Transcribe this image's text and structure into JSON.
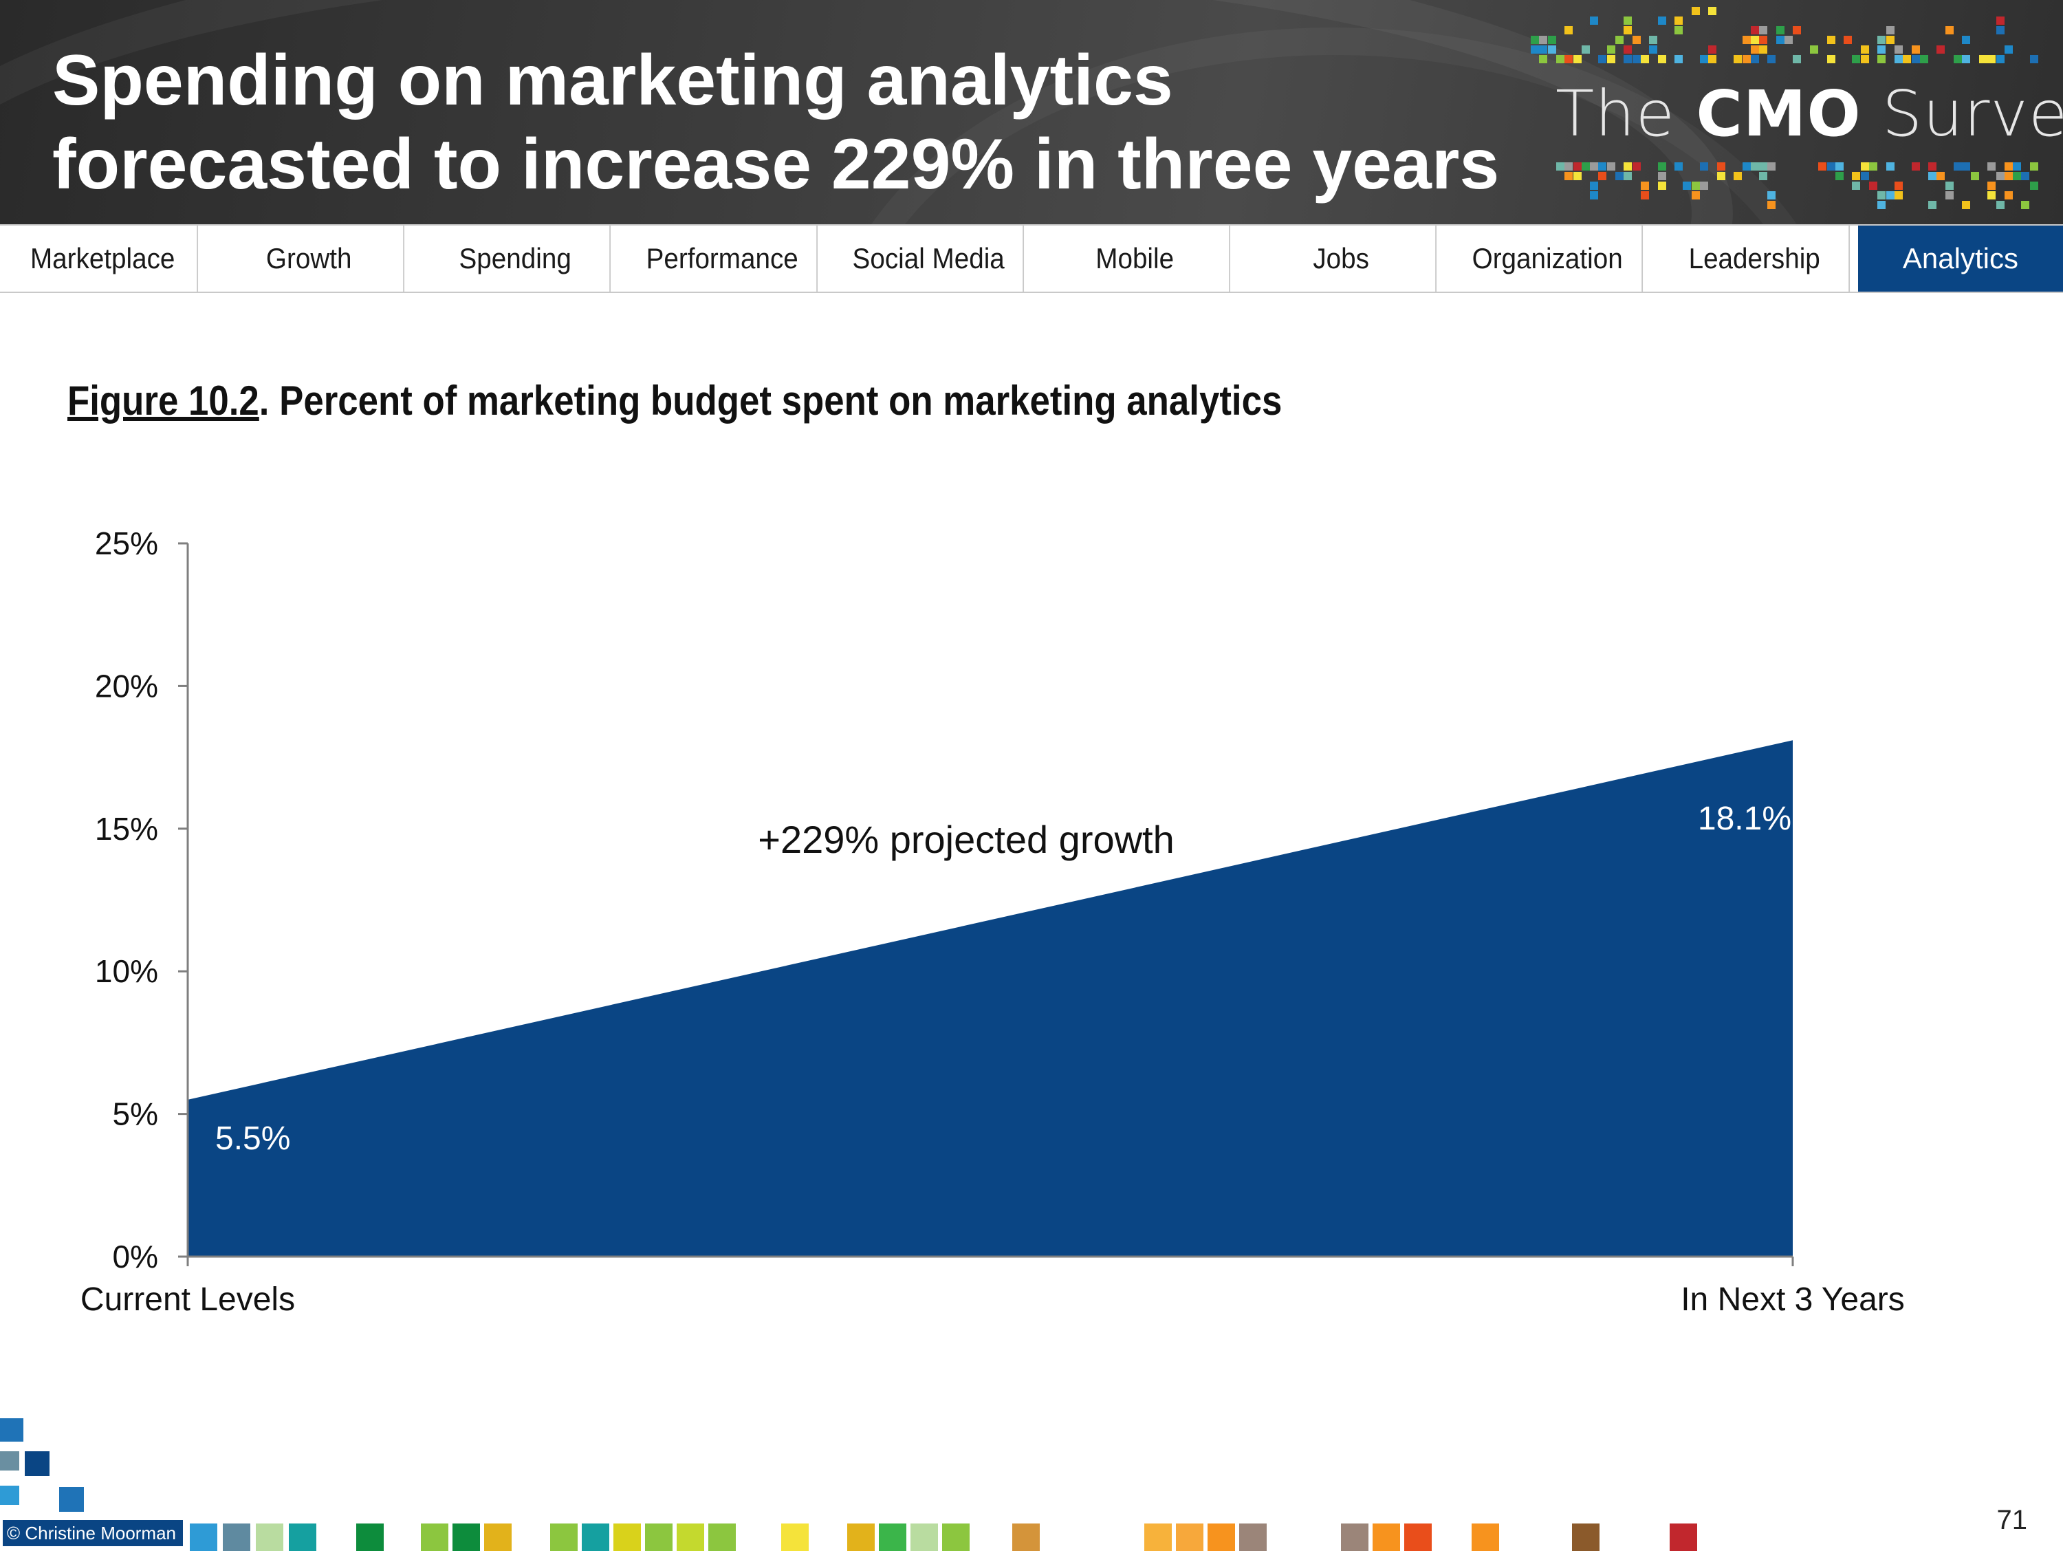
{
  "header": {
    "title": "Spending on marketing analytics forecasted to increase 229% in three years",
    "logo_prefix": "The ",
    "logo_bold": "CMO",
    "logo_suffix": " Survey"
  },
  "nav": {
    "tabs": [
      "Marketplace",
      "Growth",
      "Spending",
      "Performance",
      "Social Media",
      "Mobile",
      "Jobs",
      "Organization",
      "Leadership",
      "Analytics"
    ],
    "active": "Analytics"
  },
  "figure": {
    "number": "Figure 10.2",
    "caption": ". Percent of marketing budget spent on marketing analytics"
  },
  "chart_data": {
    "type": "area",
    "categories": [
      "Current Levels",
      "In Next 3 Years"
    ],
    "values": [
      5.5,
      18.1
    ],
    "data_labels": [
      "5.5%",
      "18.1%"
    ],
    "annotation": "+229% projected growth",
    "ylim": [
      0,
      25
    ],
    "yticks": [
      0,
      5,
      10,
      15,
      20,
      25
    ],
    "ytick_labels": [
      "0%",
      "5%",
      "10%",
      "15%",
      "20%",
      "25%"
    ],
    "grid": false,
    "legend": "none",
    "fill_color": "#0a4584"
  },
  "footer": {
    "copyright": "© Christine Moorman",
    "page_number": "71"
  },
  "colors": {
    "accent": "#0a4584",
    "header_bg": "#3a3a3a"
  }
}
